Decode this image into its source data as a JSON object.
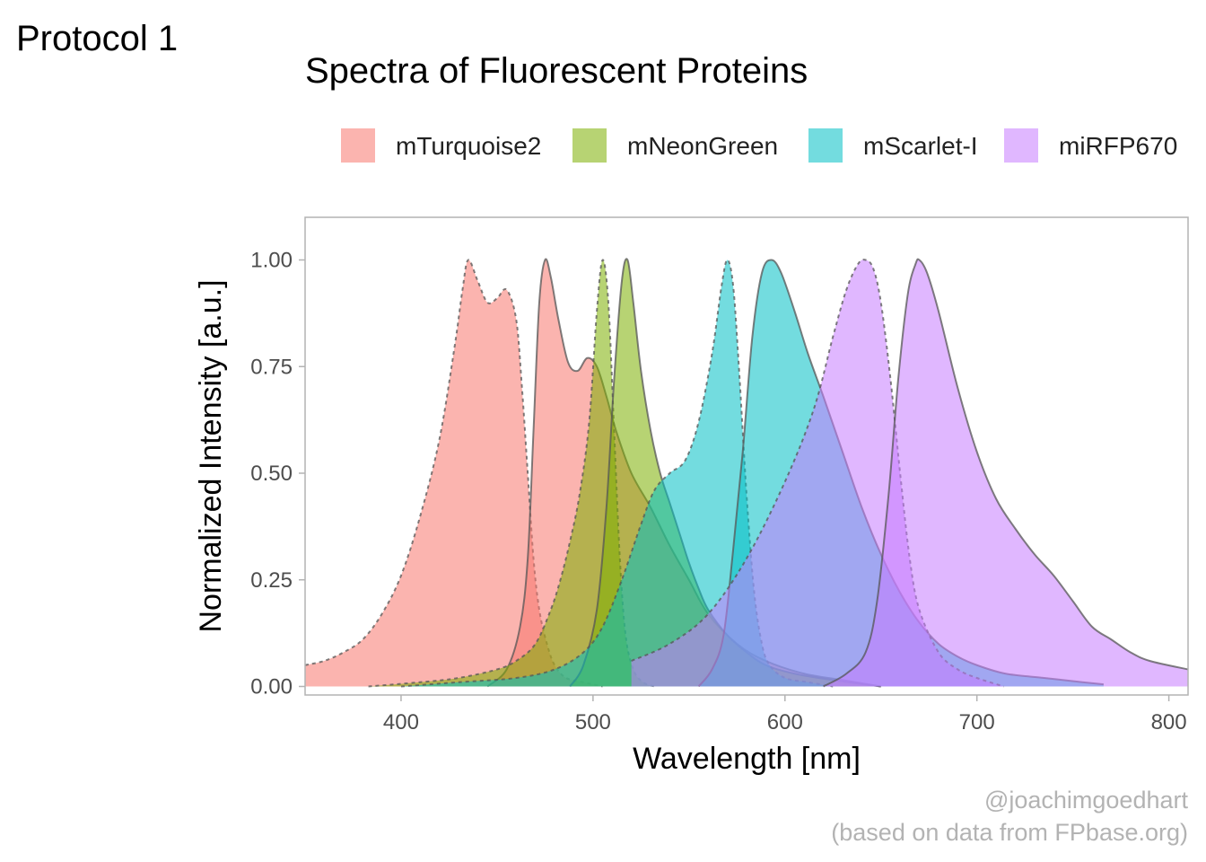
{
  "tag": "Protocol 1",
  "caption_line1": "@joachimgoedhart",
  "caption_line2": "(based on data from FPbase.org)",
  "chart_data": {
    "type": "area",
    "title": "Spectra of Fluorescent Proteins",
    "xlabel": "Wavelength [nm]",
    "ylabel": "Normalized Intensity [a.u.]",
    "xlim": [
      350,
      810
    ],
    "ylim": [
      -0.02,
      1.1
    ],
    "x_ticks": [
      400,
      500,
      600,
      700,
      800
    ],
    "x_tick_labels": [
      "400",
      "500",
      "600",
      "700",
      "800"
    ],
    "y_ticks": [
      0,
      0.25,
      0.5,
      0.75,
      1
    ],
    "y_tick_labels": [
      "0.00",
      "0.25",
      "0.50",
      "0.75",
      "1.00"
    ],
    "grid": false,
    "legend_position": "top",
    "series": [
      {
        "name": "mTurquoise2",
        "color": "#F8766D",
        "excitation": [
          [
            350,
            0.05
          ],
          [
            360,
            0.06
          ],
          [
            370,
            0.08
          ],
          [
            380,
            0.11
          ],
          [
            390,
            0.17
          ],
          [
            400,
            0.26
          ],
          [
            410,
            0.4
          ],
          [
            420,
            0.58
          ],
          [
            428,
            0.8
          ],
          [
            432,
            0.93
          ],
          [
            435,
            1.0
          ],
          [
            440,
            0.95
          ],
          [
            445,
            0.9
          ],
          [
            450,
            0.91
          ],
          [
            455,
            0.93
          ],
          [
            460,
            0.86
          ],
          [
            463,
            0.7
          ],
          [
            466,
            0.5
          ],
          [
            469,
            0.3
          ],
          [
            472,
            0.18
          ],
          [
            476,
            0.1
          ],
          [
            480,
            0.05
          ],
          [
            486,
            0.02
          ],
          [
            495,
            0.01
          ],
          [
            505,
            0.0
          ]
        ],
        "emission": [
          [
            445,
            0.0
          ],
          [
            455,
            0.04
          ],
          [
            462,
            0.14
          ],
          [
            466,
            0.3
          ],
          [
            469,
            0.6
          ],
          [
            472,
            0.9
          ],
          [
            475,
            1.0
          ],
          [
            478,
            0.96
          ],
          [
            482,
            0.86
          ],
          [
            487,
            0.76
          ],
          [
            492,
            0.74
          ],
          [
            497,
            0.77
          ],
          [
            502,
            0.75
          ],
          [
            507,
            0.68
          ],
          [
            512,
            0.6
          ],
          [
            520,
            0.5
          ],
          [
            530,
            0.42
          ],
          [
            540,
            0.33
          ],
          [
            550,
            0.25
          ],
          [
            560,
            0.17
          ],
          [
            575,
            0.1
          ],
          [
            590,
            0.06
          ],
          [
            610,
            0.03
          ],
          [
            630,
            0.015
          ],
          [
            650,
            0.0
          ]
        ]
      },
      {
        "name": "mNeonGreen",
        "color": "#7CAE00",
        "excitation": [
          [
            383,
            0.0
          ],
          [
            410,
            0.01
          ],
          [
            430,
            0.02
          ],
          [
            450,
            0.04
          ],
          [
            460,
            0.06
          ],
          [
            470,
            0.1
          ],
          [
            478,
            0.18
          ],
          [
            483,
            0.25
          ],
          [
            488,
            0.34
          ],
          [
            493,
            0.45
          ],
          [
            498,
            0.62
          ],
          [
            502,
            0.88
          ],
          [
            505,
            1.0
          ],
          [
            508,
            0.9
          ],
          [
            511,
            0.6
          ],
          [
            514,
            0.3
          ],
          [
            517,
            0.12
          ],
          [
            521,
            0.04
          ],
          [
            526,
            0.01
          ],
          [
            532,
            0.0
          ]
        ],
        "emission": [
          [
            488,
            0.0
          ],
          [
            495,
            0.05
          ],
          [
            502,
            0.18
          ],
          [
            507,
            0.42
          ],
          [
            511,
            0.72
          ],
          [
            515,
            0.95
          ],
          [
            518,
            1.0
          ],
          [
            521,
            0.9
          ],
          [
            525,
            0.74
          ],
          [
            530,
            0.6
          ],
          [
            535,
            0.5
          ],
          [
            540,
            0.43
          ],
          [
            545,
            0.36
          ],
          [
            550,
            0.29
          ],
          [
            555,
            0.23
          ],
          [
            560,
            0.18
          ],
          [
            570,
            0.12
          ],
          [
            580,
            0.08
          ],
          [
            590,
            0.05
          ],
          [
            605,
            0.03
          ],
          [
            625,
            0.015
          ],
          [
            650,
            0.0
          ]
        ]
      },
      {
        "name": "mScarlet-I",
        "color": "#00BFC4",
        "excitation": [
          [
            400,
            0.0
          ],
          [
            430,
            0.01
          ],
          [
            460,
            0.02
          ],
          [
            480,
            0.04
          ],
          [
            495,
            0.08
          ],
          [
            505,
            0.14
          ],
          [
            515,
            0.25
          ],
          [
            525,
            0.38
          ],
          [
            532,
            0.46
          ],
          [
            540,
            0.5
          ],
          [
            548,
            0.53
          ],
          [
            555,
            0.62
          ],
          [
            562,
            0.78
          ],
          [
            567,
            0.94
          ],
          [
            570,
            1.0
          ],
          [
            573,
            0.94
          ],
          [
            576,
            0.75
          ],
          [
            580,
            0.45
          ],
          [
            584,
            0.22
          ],
          [
            588,
            0.1
          ],
          [
            592,
            0.05
          ],
          [
            600,
            0.02
          ],
          [
            612,
            0.01
          ],
          [
            625,
            0.0
          ]
        ],
        "emission": [
          [
            555,
            0.0
          ],
          [
            562,
            0.04
          ],
          [
            568,
            0.12
          ],
          [
            573,
            0.32
          ],
          [
            578,
            0.55
          ],
          [
            583,
            0.82
          ],
          [
            588,
            0.97
          ],
          [
            593,
            1.0
          ],
          [
            598,
            0.97
          ],
          [
            605,
            0.88
          ],
          [
            612,
            0.78
          ],
          [
            620,
            0.68
          ],
          [
            630,
            0.55
          ],
          [
            640,
            0.42
          ],
          [
            650,
            0.31
          ],
          [
            660,
            0.22
          ],
          [
            670,
            0.15
          ],
          [
            680,
            0.1
          ],
          [
            690,
            0.07
          ],
          [
            700,
            0.05
          ],
          [
            715,
            0.03
          ],
          [
            735,
            0.02
          ],
          [
            755,
            0.01
          ],
          [
            766,
            0.005
          ]
        ]
      },
      {
        "name": "miRFP670",
        "color": "#C77CFF",
        "excitation": [
          [
            520,
            0.06
          ],
          [
            540,
            0.1
          ],
          [
            560,
            0.17
          ],
          [
            580,
            0.3
          ],
          [
            600,
            0.48
          ],
          [
            615,
            0.65
          ],
          [
            625,
            0.82
          ],
          [
            632,
            0.93
          ],
          [
            638,
            0.99
          ],
          [
            642,
            1.0
          ],
          [
            646,
            0.98
          ],
          [
            650,
            0.9
          ],
          [
            655,
            0.72
          ],
          [
            660,
            0.5
          ],
          [
            665,
            0.3
          ],
          [
            670,
            0.18
          ],
          [
            680,
            0.08
          ],
          [
            690,
            0.04
          ],
          [
            700,
            0.02
          ],
          [
            714,
            0.0
          ]
        ],
        "emission": [
          [
            620,
            0.0
          ],
          [
            632,
            0.03
          ],
          [
            642,
            0.08
          ],
          [
            648,
            0.2
          ],
          [
            654,
            0.45
          ],
          [
            659,
            0.72
          ],
          [
            664,
            0.92
          ],
          [
            668,
            0.99
          ],
          [
            670,
            1.0
          ],
          [
            674,
            0.97
          ],
          [
            680,
            0.88
          ],
          [
            690,
            0.7
          ],
          [
            700,
            0.55
          ],
          [
            710,
            0.44
          ],
          [
            720,
            0.37
          ],
          [
            730,
            0.31
          ],
          [
            740,
            0.26
          ],
          [
            750,
            0.2
          ],
          [
            760,
            0.14
          ],
          [
            770,
            0.11
          ],
          [
            780,
            0.08
          ],
          [
            790,
            0.06
          ],
          [
            810,
            0.04
          ]
        ]
      }
    ]
  }
}
